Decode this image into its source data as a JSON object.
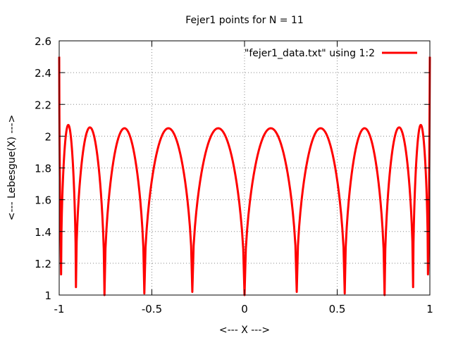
{
  "chart_data": {
    "type": "line",
    "title": "Fejer1 points for N = 11",
    "xlabel": "<--- X --->",
    "ylabel": "<--- Lebesgue(X) --->",
    "xlim": [
      -1,
      1
    ],
    "ylim": [
      1,
      2.6
    ],
    "xticks": [
      -1,
      -0.5,
      0,
      0.5,
      1
    ],
    "xtick_labels": [
      "-1",
      "-0.5",
      "0",
      "0.5",
      "1"
    ],
    "yticks": [
      1,
      1.2,
      1.4,
      1.6,
      1.8,
      2,
      2.2,
      2.4,
      2.6
    ],
    "ytick_labels": [
      "1",
      "1.2",
      "1.4",
      "1.6",
      "1.8",
      "2",
      "2.2",
      "2.4",
      "2.6"
    ],
    "grid": true,
    "legend_position": "top-right",
    "series": [
      {
        "name": "\"fejer1_data.txt\" using 1:2",
        "color": "#ff0000",
        "nodes": [
          -0.9898,
          -0.9096,
          -0.7557,
          -0.5406,
          -0.2817,
          0.0,
          0.2817,
          0.5406,
          0.7557,
          0.9096,
          0.9898
        ],
        "endpoint_value": 2.5,
        "peak_values": [
          2.07,
          2.055,
          2.05,
          2.05,
          2.05,
          2.05,
          2.05,
          2.05,
          2.055,
          2.07
        ],
        "min_values": [
          1.13,
          1.05,
          1.0,
          1.01,
          1.02,
          1.0,
          1.02,
          1.01,
          1.0,
          1.05,
          1.13
        ]
      }
    ]
  }
}
